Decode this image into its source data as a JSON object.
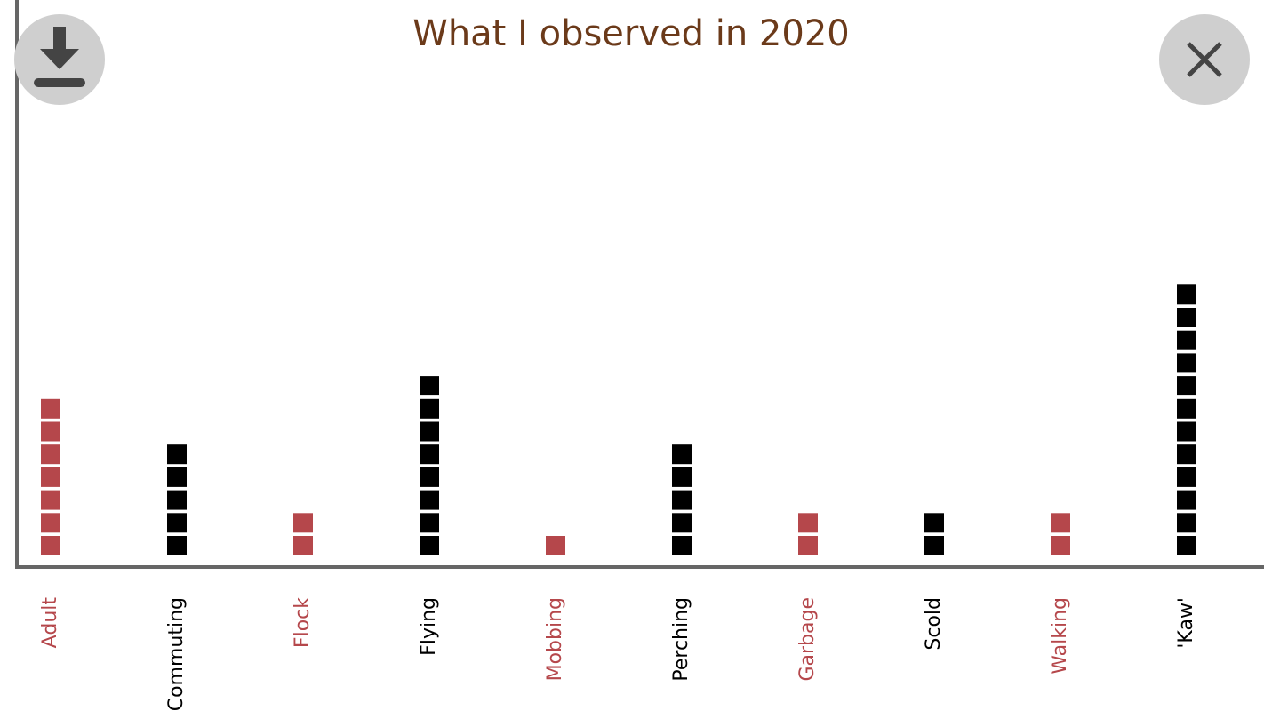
{
  "chart_data": {
    "type": "bar",
    "title": "What I observed in 2020",
    "categories": [
      "Adult",
      "Commuting",
      "Flock",
      "Flying",
      "Mobbing",
      "Perching",
      "Garbage",
      "Scold",
      "Walking",
      "'Kaw'"
    ],
    "values": [
      7,
      5,
      2,
      8,
      1,
      5,
      2,
      2,
      2,
      12
    ],
    "colors": [
      "#b5474b",
      "#000000",
      "#b5474b",
      "#000000",
      "#b5474b",
      "#000000",
      "#b5474b",
      "#000000",
      "#b5474b",
      "#000000"
    ],
    "title_color": "#6b3a1a"
  }
}
